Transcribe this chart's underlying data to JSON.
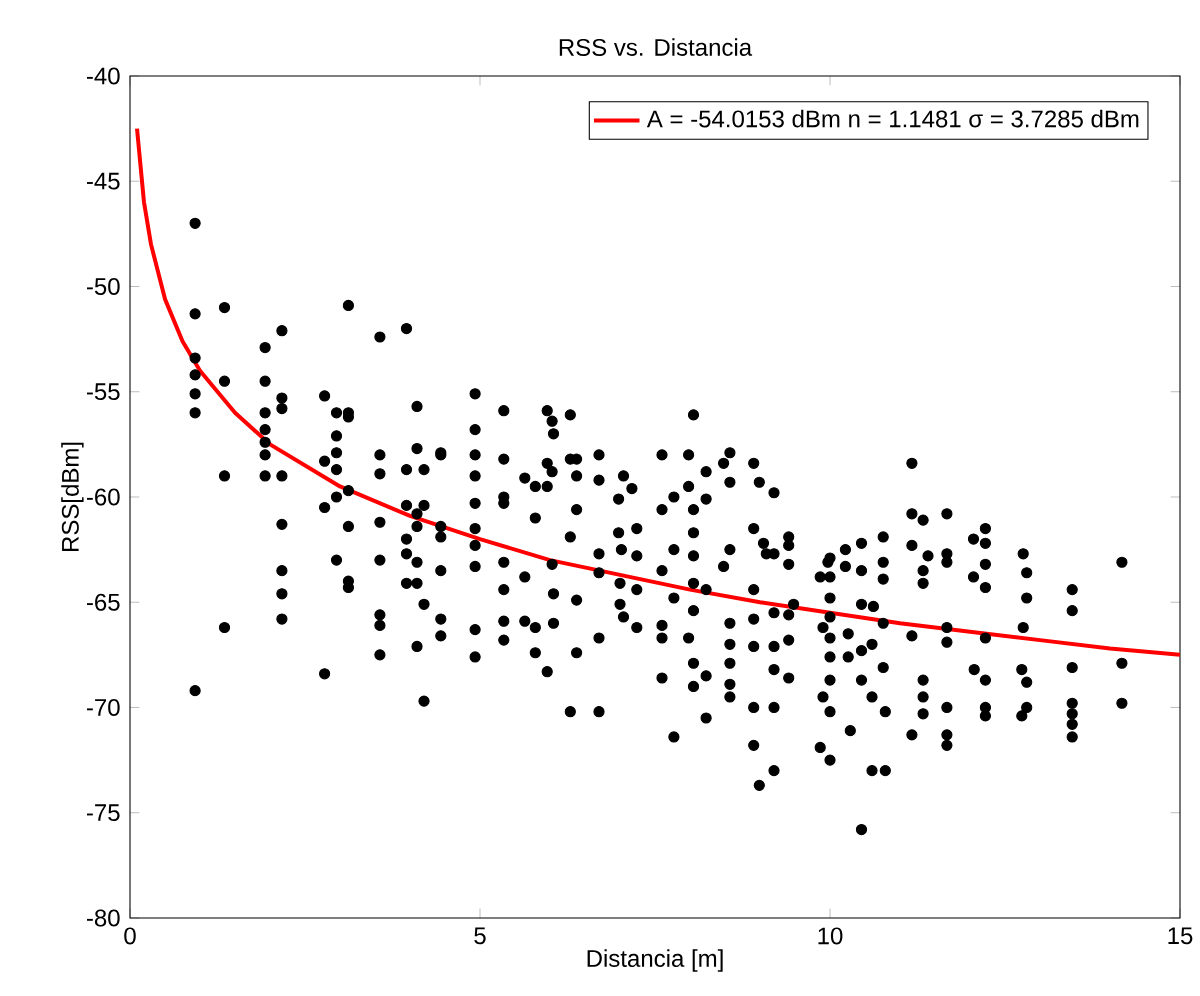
{
  "chart_data": {
    "type": "scatter",
    "title": "RSS vs. Distancia",
    "xlabel": "Distancia [m]",
    "ylabel": "RSS[dBm]",
    "xlim": [
      0,
      15
    ],
    "ylim": [
      -80,
      -40
    ],
    "xticks": [
      0,
      5,
      10,
      15
    ],
    "yticks": [
      -80,
      -75,
      -70,
      -65,
      -60,
      -55,
      -50,
      -45,
      -40
    ],
    "grid": false,
    "legend": "top right",
    "series": [
      {
        "color": "#000000",
        "marker": "circle",
        "x": [
          0.93,
          0.93,
          0.93,
          0.93,
          0.93,
          0.93,
          0.93,
          1.35,
          1.35,
          1.35,
          1.35,
          1.93,
          1.93,
          1.93,
          1.93,
          1.93,
          1.93,
          1.93,
          2.17,
          2.17,
          2.17,
          2.17,
          2.17,
          2.17,
          2.17,
          2.17,
          2.78,
          2.78,
          2.78,
          2.78,
          2.95,
          2.95,
          2.95,
          2.95,
          2.95,
          2.95,
          3.12,
          3.12,
          3.12,
          3.12,
          3.12,
          3.12,
          3.12,
          3.57,
          3.57,
          3.57,
          3.57,
          3.57,
          3.57,
          3.57,
          3.57,
          3.95,
          3.95,
          3.95,
          3.95,
          3.95,
          3.95,
          4.1,
          4.1,
          4.1,
          4.1,
          4.1,
          4.1,
          4.1,
          4.2,
          4.2,
          4.2,
          4.2,
          4.44,
          4.44,
          4.44,
          4.44,
          4.44,
          4.44,
          4.44,
          4.93,
          4.93,
          4.93,
          4.93,
          4.93,
          4.93,
          4.93,
          4.93,
          4.93,
          4.93,
          5.34,
          5.34,
          5.34,
          5.34,
          5.34,
          5.34,
          5.34,
          5.34,
          5.64,
          5.64,
          5.64,
          5.79,
          5.79,
          5.79,
          5.79,
          5.96,
          5.96,
          5.96,
          5.96,
          6.03,
          6.03,
          6.03,
          6.05,
          6.05,
          6.05,
          6.29,
          6.29,
          6.29,
          6.29,
          6.38,
          6.38,
          6.38,
          6.38,
          6.38,
          6.7,
          6.7,
          6.7,
          6.7,
          6.7,
          6.7,
          6.98,
          6.98,
          7.02,
          7.0,
          7.0,
          7.05,
          7.05,
          7.17,
          7.24,
          7.24,
          7.24,
          7.24,
          7.6,
          7.6,
          7.6,
          7.6,
          7.6,
          7.6,
          7.77,
          7.77,
          7.77,
          7.77,
          7.98,
          7.98,
          7.98,
          8.05,
          8.05,
          8.05,
          8.05,
          8.05,
          8.05,
          8.05,
          8.05,
          8.23,
          8.23,
          8.23,
          8.23,
          8.23,
          8.48,
          8.48,
          8.57,
          8.57,
          8.57,
          8.57,
          8.57,
          8.57,
          8.57,
          8.57,
          8.91,
          8.91,
          8.91,
          8.91,
          8.91,
          8.91,
          8.91,
          8.99,
          8.99,
          9.05,
          9.09,
          9.2,
          9.2,
          9.2,
          9.2,
          9.2,
          9.2,
          9.2,
          9.41,
          9.41,
          9.41,
          9.41,
          9.41,
          9.41,
          9.48,
          9.97,
          10.0,
          10.0,
          10.0,
          10.0,
          10.0,
          10.0,
          10.0,
          10.0,
          10.0,
          9.9,
          9.9,
          9.86,
          9.86,
          10.22,
          10.22,
          10.26,
          10.26,
          10.29,
          10.45,
          10.45,
          10.45,
          10.45,
          10.45,
          10.45,
          10.6,
          10.6,
          10.6,
          10.62,
          10.76,
          10.76,
          10.76,
          10.76,
          10.76,
          10.79,
          10.79,
          11.17,
          11.17,
          11.17,
          11.17,
          11.17,
          11.33,
          11.33,
          11.33,
          11.33,
          11.33,
          11.33,
          11.4,
          11.67,
          11.67,
          11.67,
          11.67,
          11.67,
          11.67,
          11.67,
          11.67,
          12.05,
          12.05,
          12.06,
          12.22,
          12.22,
          12.22,
          12.22,
          12.22,
          12.22,
          12.22,
          12.22,
          12.76,
          12.81,
          12.81,
          12.81,
          12.81,
          12.74,
          12.74,
          12.76,
          13.46,
          13.46,
          13.46,
          13.46,
          13.46,
          13.46,
          13.46,
          14.17,
          14.17,
          14.17
        ],
        "values": [
          -47.0,
          -51.3,
          -53.4,
          -54.2,
          -55.1,
          -56.0,
          -69.2,
          -51.0,
          -54.5,
          -59.0,
          -66.2,
          -52.9,
          -54.5,
          -56.0,
          -56.8,
          -57.4,
          -58.0,
          -59.0,
          -52.1,
          -55.3,
          -55.8,
          -59.0,
          -61.3,
          -63.5,
          -64.6,
          -65.8,
          -55.2,
          -58.3,
          -60.5,
          -68.4,
          -56.0,
          -57.1,
          -57.9,
          -58.7,
          -60.0,
          -63.0,
          -50.9,
          -56.0,
          -56.2,
          -59.7,
          -61.4,
          -64.0,
          -64.3,
          -52.4,
          -58.0,
          -58.9,
          -61.2,
          -63.0,
          -65.6,
          -66.1,
          -67.5,
          -52.0,
          -58.7,
          -60.4,
          -62.0,
          -62.7,
          -64.1,
          -55.7,
          -57.7,
          -60.8,
          -61.4,
          -63.1,
          -64.1,
          -67.1,
          -58.7,
          -60.4,
          -65.1,
          -69.7,
          -57.9,
          -58.0,
          -61.4,
          -61.9,
          -63.5,
          -65.8,
          -66.6,
          -55.1,
          -56.8,
          -58.0,
          -59.0,
          -60.3,
          -61.5,
          -62.3,
          -63.3,
          -66.3,
          -67.6,
          -58.2,
          -60.0,
          -60.3,
          -63.1,
          -64.4,
          -65.9,
          -66.8,
          -55.9,
          -59.1,
          -63.8,
          -65.9,
          -61.0,
          -59.5,
          -66.2,
          -67.4,
          -58.4,
          -59.5,
          -68.3,
          -55.9,
          -58.8,
          -63.2,
          -56.4,
          -64.6,
          -66.0,
          -57.0,
          -58.2,
          -61.9,
          -70.2,
          -56.1,
          -58.2,
          -59.0,
          -60.6,
          -64.9,
          -67.4,
          -58.0,
          -59.2,
          -62.7,
          -63.6,
          -66.7,
          -70.2,
          -60.1,
          -61.7,
          -62.5,
          -64.1,
          -65.1,
          -59.0,
          -65.7,
          -59.6,
          -61.5,
          -62.8,
          -64.4,
          -66.2,
          -58.0,
          -60.6,
          -63.5,
          -66.1,
          -66.7,
          -68.6,
          -60.0,
          -62.5,
          -64.8,
          -71.4,
          -58.0,
          -59.5,
          -66.7,
          -60.6,
          -61.7,
          -62.8,
          -64.1,
          -65.4,
          -67.9,
          -69.0,
          -56.1,
          -58.8,
          -60.1,
          -64.4,
          -68.5,
          -70.5,
          -58.4,
          -63.3,
          -57.9,
          -59.3,
          -62.5,
          -66.0,
          -67.0,
          -67.9,
          -68.9,
          -69.5,
          -58.4,
          -61.5,
          -64.4,
          -65.8,
          -67.1,
          -70.0,
          -71.8,
          -59.3,
          -73.7,
          -62.2,
          -62.7,
          -59.8,
          -62.7,
          -65.5,
          -67.1,
          -68.2,
          -70.0,
          -73.0,
          -61.9,
          -62.3,
          -63.2,
          -65.6,
          -66.8,
          -68.6,
          -65.1,
          -63.1,
          -62.9,
          -63.8,
          -64.8,
          -65.7,
          -66.7,
          -67.6,
          -68.7,
          -70.2,
          -72.5,
          -66.2,
          -69.5,
          -63.8,
          -71.9,
          -62.5,
          -63.3,
          -66.5,
          -67.6,
          -71.1,
          -62.2,
          -63.5,
          -65.1,
          -67.3,
          -68.7,
          -75.8,
          -67.0,
          -69.5,
          -73.0,
          -65.2,
          -61.9,
          -63.1,
          -63.9,
          -66.0,
          -68.1,
          -70.2,
          -73.0,
          -58.4,
          -60.8,
          -62.3,
          -66.6,
          -71.3,
          -61.1,
          -63.5,
          -64.1,
          -68.7,
          -69.5,
          -70.3,
          -62.8,
          -60.8,
          -62.7,
          -63.1,
          -66.2,
          -66.9,
          -70.0,
          -71.3,
          -71.8,
          -62.0,
          -63.8,
          -68.2,
          -61.5,
          -62.2,
          -63.2,
          -64.3,
          -66.7,
          -68.7,
          -70.0,
          -70.4,
          -62.7,
          -63.6,
          -64.8,
          -68.8,
          -70.0,
          -68.2,
          -70.4,
          -66.2,
          -64.4,
          -65.4,
          -68.1,
          -69.8,
          -70.3,
          -70.8,
          -71.4,
          -63.1,
          -67.9,
          -69.8
        ]
      },
      {
        "type": "line",
        "name": "A = -54.0153 dBm  n = 1.1481  σ = 3.7285 dBm",
        "color": "#ff0000",
        "marker": "none",
        "line_style": "solid",
        "x": [
          0.1,
          0.2,
          0.3,
          0.5,
          0.75,
          1,
          1.5,
          2,
          3,
          4,
          5,
          6,
          7,
          8,
          9,
          10,
          11,
          12,
          13,
          14,
          15
        ],
        "values": [
          -42.5,
          -46.0,
          -48.0,
          -50.6,
          -52.6,
          -54.0,
          -56.0,
          -57.5,
          -59.5,
          -60.9,
          -62.0,
          -63.0,
          -63.7,
          -64.4,
          -65.0,
          -65.5,
          -66.0,
          -66.4,
          -66.8,
          -67.2,
          -67.5
        ]
      }
    ]
  }
}
